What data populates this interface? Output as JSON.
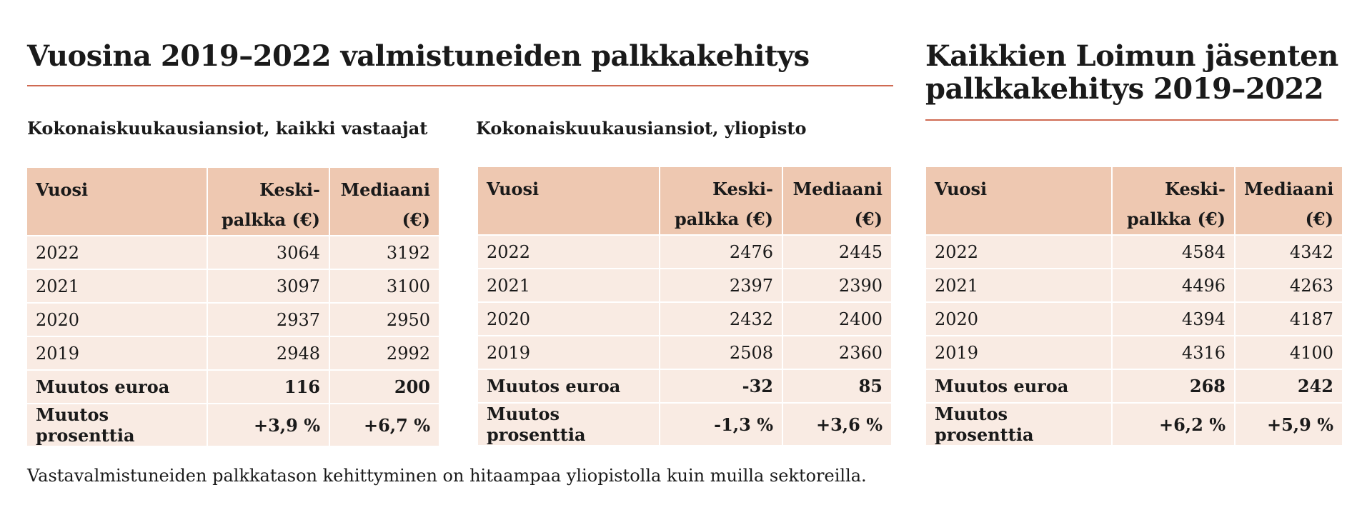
{
  "left_section": {
    "title": "Vuosina 2019–2022 valmistuneiden palkkakehitys"
  },
  "right_section": {
    "title_line1": "Kaikkien Loimun jäsenten",
    "title_line2": "palkkakehitys 2019–2022"
  },
  "tables": [
    {
      "subtitle": "Kokonaiskuukausiansiot, kaikki vastaajat",
      "headers": [
        "Vuosi",
        "Keski-",
        "palkka (€)",
        "Mediaani",
        "(€)"
      ],
      "rows": [
        [
          "2022",
          "3064",
          "3192"
        ],
        [
          "2021",
          "3097",
          "3100"
        ],
        [
          "2020",
          "2937",
          "2950"
        ],
        [
          "2019",
          "2948",
          "2992"
        ],
        [
          "Muutos euroa",
          "116",
          "200"
        ],
        [
          "Muutos prosenttia",
          "+3,9 %",
          "+6,7 %"
        ]
      ]
    },
    {
      "subtitle": "Kokonaiskuukausiansiot, yliopisto",
      "headers": [
        "Vuosi",
        "Keski-",
        "palkka (€)",
        "Mediaani",
        "(€)"
      ],
      "rows": [
        [
          "2022",
          "2476",
          "2445"
        ],
        [
          "2021",
          "2397",
          "2390"
        ],
        [
          "2020",
          "2432",
          "2400"
        ],
        [
          "2019",
          "2508",
          "2360"
        ],
        [
          "Muutos euroa",
          "-32",
          "85"
        ],
        [
          "Muutos prosenttia",
          "-1,3 %",
          "+3,6 %"
        ]
      ]
    },
    {
      "subtitle": "",
      "headers": [
        "Vuosi",
        "Keski-",
        "palkka (€)",
        "Mediaani",
        "(€)"
      ],
      "rows": [
        [
          "2022",
          "4584",
          "4342"
        ],
        [
          "2021",
          "4496",
          "4263"
        ],
        [
          "2020",
          "4394",
          "4187"
        ],
        [
          "2019",
          "4316",
          "4100"
        ],
        [
          "Muutos euroa",
          "268",
          "242"
        ],
        [
          "Muutos prosenttia",
          "+6,2 %",
          "+5,9 %"
        ]
      ]
    }
  ],
  "footnote": "Vastavalmistuneiden palkkatason kehittyminen on hitaampaa yliopistolla kuin muilla sektoreilla.",
  "colors": {
    "accent_rule": "#cf6a52",
    "header_fill": "#eec8b1",
    "row_fill": "#f9ebe3"
  }
}
